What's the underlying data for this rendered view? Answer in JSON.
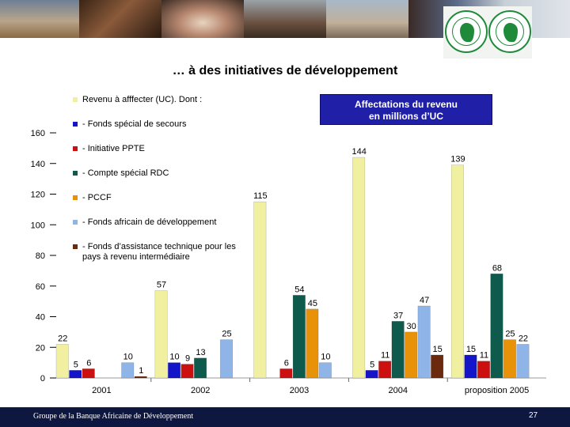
{
  "slide": {
    "title": "… à des initiatives de développement",
    "footer": "Groupe de la Banque Africaine de Développement",
    "page_number": "27"
  },
  "colors": {
    "Revenu à afffecter (UC).  Dont :": "#f0f0a0",
    "- Fonds spécial de secours": "#1414c8",
    "- Initiative PPTE": "#cc1010",
    "- Compte spécial RDC": "#0e5a4c",
    "- PCCF": "#e8920a",
    "- Fonds africain de développement": "#8fb4e8",
    "- Fonds d’assistance technique pour les pays à revenu intermédiaire": "#6b2a0e",
    "note_box": "#1f1fa8",
    "footer_bar": "#0d1740"
  },
  "chart_data": {
    "type": "bar",
    "note": [
      "Affectations du revenu",
      "en millions d’UC"
    ],
    "categories": [
      "2001",
      "2002",
      "2003",
      "2004",
      "proposition 2005"
    ],
    "ylim": [
      0,
      160
    ],
    "yticks": [
      "0",
      "20",
      "40",
      "60",
      "80",
      "100",
      "120",
      "140",
      "160"
    ],
    "grid": false,
    "legend_position": "top-left",
    "series": [
      {
        "name": "Revenu à afffecter (UC).  Dont :",
        "values": [
          22,
          57,
          115,
          144,
          139
        ]
      },
      {
        "name": "- Fonds spécial de secours",
        "values": [
          5,
          10,
          null,
          5,
          15
        ]
      },
      {
        "name": "- Initiative PPTE",
        "values": [
          6,
          9,
          6,
          11,
          11
        ]
      },
      {
        "name": "- Compte spécial RDC",
        "values": [
          null,
          13,
          54,
          37,
          68
        ]
      },
      {
        "name": "- PCCF",
        "values": [
          null,
          null,
          45,
          30,
          25
        ]
      },
      {
        "name": "- Fonds africain de développement",
        "values": [
          10,
          25,
          10,
          47,
          22
        ]
      },
      {
        "name": "- Fonds d’assistance technique pour les pays à revenu intermédiaire",
        "values": [
          1,
          null,
          null,
          15,
          null
        ]
      }
    ]
  }
}
